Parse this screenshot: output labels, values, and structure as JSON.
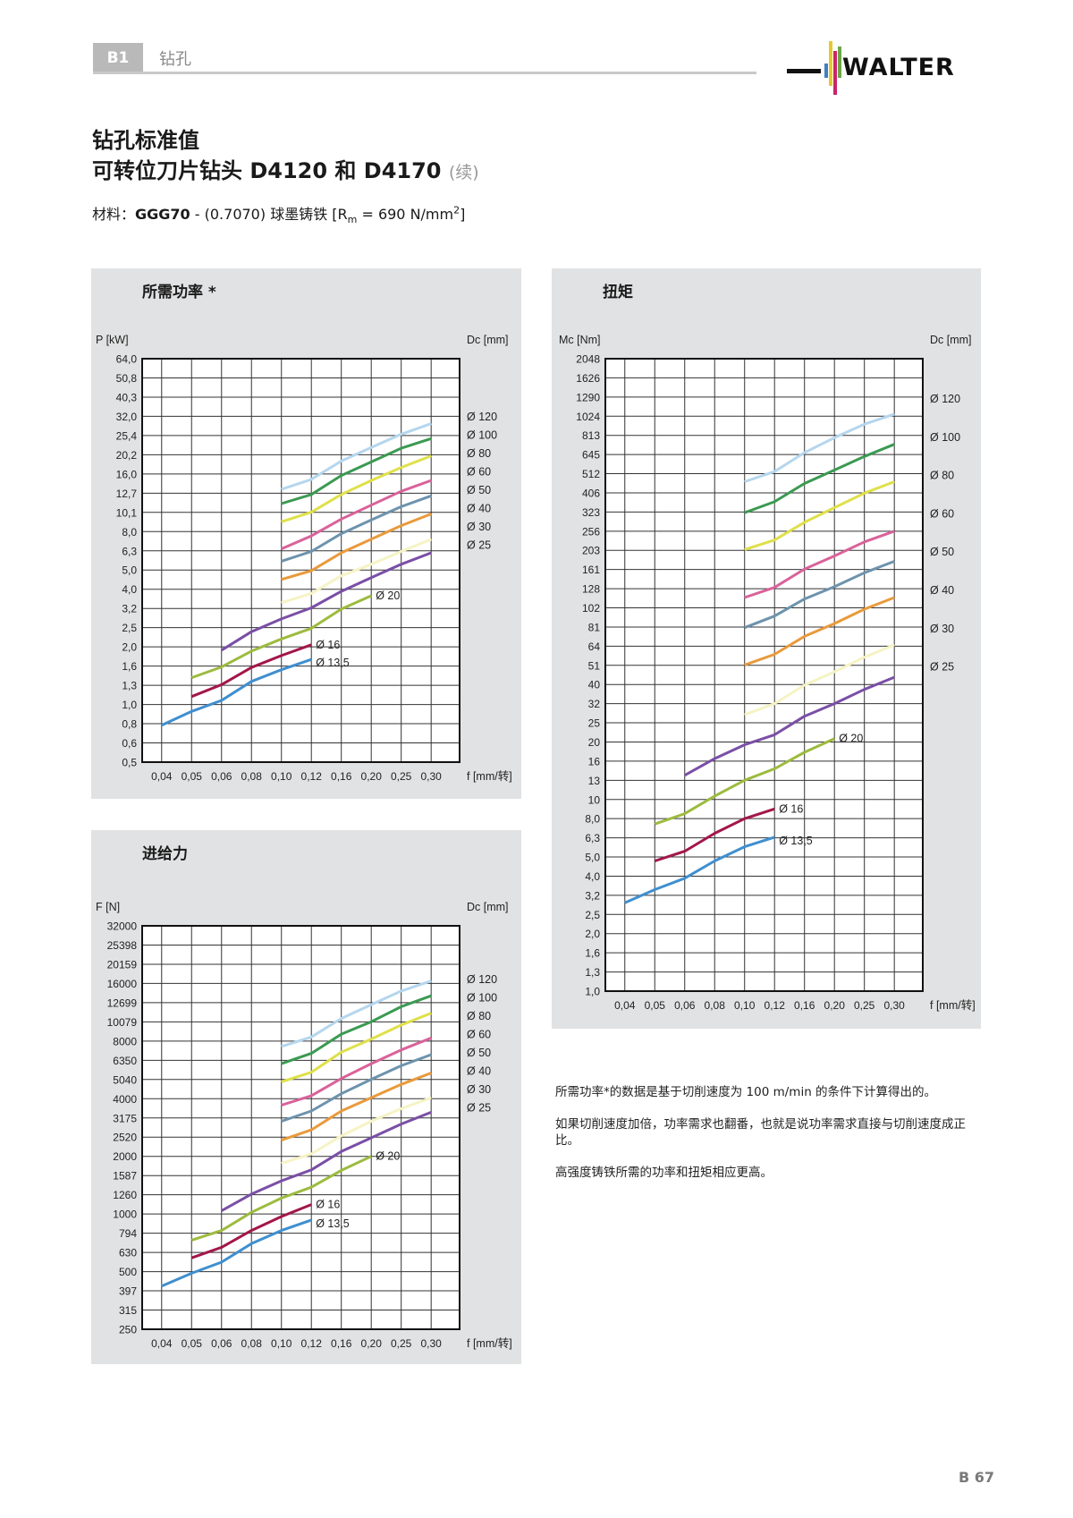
{
  "header": {
    "section_tab": "B1",
    "section_title": "钻孔",
    "brand": "WALTER"
  },
  "title": {
    "line1": "钻孔标准值",
    "line2": "可转位刀片钻头 D4120 和 D4170",
    "line2_suffix": "(续)"
  },
  "material": {
    "label": "材料：",
    "grade": "GGG70",
    "rest": " - (0.7070) 球墨铸铁 [R",
    "sub": "m",
    "rest2": " = 690 N/mm",
    "sup": "2",
    "close": "]"
  },
  "notes": [
    "所需功率*的数据是基于切削速度为 100 m/min 的条件下计算得出的。",
    "如果切削速度加倍，功率需求也翻番，也就是说功率需求直接与切削速度成正比。",
    "高强度铸铁所需的功率和扭矩相应更高。"
  ],
  "page_number": "B 67",
  "series_colors": {
    "Ø 13,5": "#3f8fcf",
    "Ø 16": "#a3164a",
    "Ø 20": "#9dbb3f",
    "Ø 25": "#7a4fa6",
    "Ø 30": "#f6f3c4",
    "Ø 40": "#e99a3c",
    "Ø 50": "#6d93ad",
    "Ø 60": "#d9629a",
    "Ø 80": "#dfe04a",
    "Ø 100": "#3b9a52",
    "Ø 120": "#b5d6ee"
  },
  "chart_data": [
    {
      "type": "line",
      "title": "所需功率 *",
      "ylabel": "P [kW]",
      "xlabel": "f [mm/转]",
      "right_label": "Dc [mm]",
      "y_scale": "log",
      "yticks": [
        "0,5",
        "0,6",
        "0,8",
        "1,0",
        "1,3",
        "1,6",
        "2,0",
        "2,5",
        "3,2",
        "4,0",
        "5,0",
        "6,3",
        "8,0",
        "10,1",
        "12,7",
        "16,0",
        "20,2",
        "25,4",
        "32,0",
        "40,3",
        "50,8",
        "64,0"
      ],
      "ylim": [
        0.5,
        64.0
      ],
      "categories": [
        "0,04",
        "0,05",
        "0,06",
        "0,08",
        "0,10",
        "0,12",
        "0,16",
        "0,20",
        "0,25",
        "0,30"
      ],
      "grid": true,
      "legend_right": [
        "Ø 120",
        "Ø 100",
        "Ø 80",
        "Ø 60",
        "Ø 50",
        "Ø 40",
        "Ø 30",
        "Ø 25"
      ],
      "inline_labels": [
        "Ø 20",
        "Ø 16",
        "Ø 13,5"
      ],
      "series": [
        {
          "name": "Ø 13,5",
          "x": [
            0.04,
            0.05,
            0.06,
            0.08,
            0.1,
            0.12
          ],
          "values": [
            0.78,
            0.92,
            1.05,
            1.32,
            1.52,
            1.72
          ]
        },
        {
          "name": "Ø 16",
          "x": [
            0.05,
            0.06,
            0.08,
            0.1,
            0.12
          ],
          "values": [
            1.1,
            1.27,
            1.56,
            1.8,
            2.05
          ]
        },
        {
          "name": "Ø 20",
          "x": [
            0.05,
            0.06,
            0.08,
            0.1,
            0.12,
            0.16,
            0.2
          ],
          "values": [
            1.38,
            1.57,
            1.9,
            2.2,
            2.5,
            3.15,
            3.7
          ]
        },
        {
          "name": "Ø 25",
          "x": [
            0.06,
            0.08,
            0.1,
            0.12,
            0.16,
            0.2,
            0.25,
            0.3
          ],
          "values": [
            1.92,
            2.4,
            2.8,
            3.2,
            3.9,
            4.6,
            5.4,
            6.2
          ]
        },
        {
          "name": "Ø 30",
          "x": [
            0.1,
            0.12,
            0.16,
            0.2,
            0.25,
            0.3
          ],
          "values": [
            3.4,
            3.8,
            4.7,
            5.4,
            6.3,
            7.3
          ]
        },
        {
          "name": "Ø 40",
          "x": [
            0.1,
            0.12,
            0.16,
            0.2,
            0.25,
            0.3
          ],
          "values": [
            4.5,
            5.0,
            6.2,
            7.3,
            8.6,
            9.9
          ]
        },
        {
          "name": "Ø 50",
          "x": [
            0.1,
            0.12,
            0.16,
            0.2,
            0.25,
            0.3
          ],
          "values": [
            5.6,
            6.3,
            7.8,
            9.2,
            10.8,
            12.3
          ]
        },
        {
          "name": "Ø 60",
          "x": [
            0.1,
            0.12,
            0.16,
            0.2,
            0.25,
            0.3
          ],
          "values": [
            6.5,
            7.6,
            9.3,
            11.0,
            13.0,
            14.8
          ]
        },
        {
          "name": "Ø 80",
          "x": [
            0.1,
            0.12,
            0.16,
            0.2,
            0.25,
            0.3
          ],
          "values": [
            9.0,
            10.1,
            12.5,
            14.8,
            17.3,
            19.9
          ]
        },
        {
          "name": "Ø 100",
          "x": [
            0.1,
            0.12,
            0.16,
            0.2,
            0.25,
            0.3
          ],
          "values": [
            11.2,
            12.5,
            15.7,
            18.5,
            21.8,
            24.5
          ]
        },
        {
          "name": "Ø 120",
          "x": [
            0.1,
            0.12,
            0.16,
            0.2,
            0.25,
            0.3
          ],
          "values": [
            13.3,
            15.0,
            18.7,
            22.0,
            25.8,
            29.3
          ]
        }
      ]
    },
    {
      "type": "line",
      "title": "扭矩",
      "ylabel": "Mc [Nm]",
      "xlabel": "f [mm/转]",
      "right_label": "Dc [mm]",
      "y_scale": "log",
      "yticks": [
        "1,0",
        "1,3",
        "1,6",
        "2,0",
        "2,5",
        "3,2",
        "4,0",
        "5,0",
        "6,3",
        "8,0",
        "10",
        "13",
        "16",
        "20",
        "25",
        "32",
        "40",
        "51",
        "64",
        "81",
        "102",
        "128",
        "161",
        "203",
        "256",
        "323",
        "406",
        "512",
        "645",
        "813",
        "1024",
        "1290",
        "1626",
        "2048"
      ],
      "ylim": [
        1.0,
        2048
      ],
      "categories": [
        "0,04",
        "0,05",
        "0,06",
        "0,08",
        "0,10",
        "0,12",
        "0,16",
        "0,20",
        "0,25",
        "0,30"
      ],
      "grid": true,
      "legend_right": [
        "Ø 120",
        "Ø 100",
        "Ø 80",
        "Ø 60",
        "Ø 50",
        "Ø 40",
        "Ø 30",
        "Ø 25"
      ],
      "inline_labels": [
        "Ø 20",
        "Ø 16",
        "Ø 13,5"
      ],
      "series": [
        {
          "name": "Ø 13,5",
          "x": [
            0.04,
            0.05,
            0.06,
            0.08,
            0.1,
            0.12
          ],
          "values": [
            2.9,
            3.4,
            3.9,
            4.8,
            5.7,
            6.4
          ]
        },
        {
          "name": "Ø 16",
          "x": [
            0.05,
            0.06,
            0.08,
            0.1,
            0.12
          ],
          "values": [
            4.8,
            5.4,
            6.7,
            8.0,
            9.0
          ]
        },
        {
          "name": "Ø 20",
          "x": [
            0.05,
            0.06,
            0.08,
            0.1,
            0.12,
            0.16,
            0.2
          ],
          "values": [
            7.5,
            8.5,
            10.5,
            12.7,
            14.6,
            17.8,
            21.0
          ]
        },
        {
          "name": "Ø 25",
          "x": [
            0.06,
            0.08,
            0.1,
            0.12,
            0.16,
            0.2,
            0.25,
            0.3
          ],
          "values": [
            13.5,
            16.5,
            19.5,
            22.0,
            27.5,
            32.0,
            38.0,
            44.0
          ]
        },
        {
          "name": "Ø 30",
          "x": [
            0.1,
            0.12,
            0.16,
            0.2,
            0.25,
            0.3
          ],
          "values": [
            28,
            32,
            40,
            47,
            56,
            65
          ]
        },
        {
          "name": "Ø 40",
          "x": [
            0.1,
            0.12,
            0.16,
            0.2,
            0.25,
            0.3
          ],
          "values": [
            51,
            58,
            72,
            84,
            100,
            115
          ]
        },
        {
          "name": "Ø 50",
          "x": [
            0.1,
            0.12,
            0.16,
            0.2,
            0.25,
            0.3
          ],
          "values": [
            80,
            92,
            113,
            131,
            155,
            178
          ]
        },
        {
          "name": "Ø 60",
          "x": [
            0.1,
            0.12,
            0.16,
            0.2,
            0.25,
            0.3
          ],
          "values": [
            115,
            130,
            162,
            190,
            225,
            256
          ]
        },
        {
          "name": "Ø 80",
          "x": [
            0.1,
            0.12,
            0.16,
            0.2,
            0.25,
            0.3
          ],
          "values": [
            205,
            230,
            285,
            340,
            405,
            465
          ]
        },
        {
          "name": "Ø 100",
          "x": [
            0.1,
            0.12,
            0.16,
            0.2,
            0.25,
            0.3
          ],
          "values": [
            320,
            365,
            455,
            535,
            630,
            730
          ]
        },
        {
          "name": "Ø 120",
          "x": [
            0.1,
            0.12,
            0.16,
            0.2,
            0.25,
            0.3
          ],
          "values": [
            465,
            525,
            660,
            790,
            930,
            1050
          ]
        }
      ]
    },
    {
      "type": "line",
      "title": "进给力",
      "ylabel": "F [N]",
      "xlabel": "f [mm/转]",
      "right_label": "Dc [mm]",
      "y_scale": "log",
      "yticks": [
        "250",
        "315",
        "397",
        "500",
        "630",
        "794",
        "1000",
        "1260",
        "1587",
        "2000",
        "2520",
        "3175",
        "4000",
        "5040",
        "6350",
        "8000",
        "10079",
        "12699",
        "16000",
        "20159",
        "25398",
        "32000"
      ],
      "ylim": [
        250,
        32000
      ],
      "categories": [
        "0,04",
        "0,05",
        "0,06",
        "0,08",
        "0,10",
        "0,12",
        "0,16",
        "0,20",
        "0,25",
        "0,30"
      ],
      "grid": true,
      "legend_right": [
        "Ø 120",
        "Ø 100",
        "Ø 80",
        "Ø 60",
        "Ø 50",
        "Ø 40",
        "Ø 30",
        "Ø 25"
      ],
      "inline_labels": [
        "Ø 20",
        "Ø 16",
        "Ø 13,5"
      ],
      "series": [
        {
          "name": "Ø 13,5",
          "x": [
            0.04,
            0.05,
            0.06,
            0.08,
            0.1,
            0.12
          ],
          "values": [
            420,
            490,
            560,
            700,
            820,
            930
          ]
        },
        {
          "name": "Ø 16",
          "x": [
            0.05,
            0.06,
            0.08,
            0.1,
            0.12
          ],
          "values": [
            590,
            670,
            820,
            970,
            1120
          ]
        },
        {
          "name": "Ø 20",
          "x": [
            0.05,
            0.06,
            0.08,
            0.1,
            0.12,
            0.16,
            0.2
          ],
          "values": [
            730,
            820,
            1020,
            1210,
            1380,
            1690,
            2000
          ]
        },
        {
          "name": "Ø 25",
          "x": [
            0.06,
            0.08,
            0.1,
            0.12,
            0.16,
            0.2,
            0.25,
            0.3
          ],
          "values": [
            1040,
            1270,
            1490,
            1700,
            2120,
            2500,
            2950,
            3400
          ]
        },
        {
          "name": "Ø 30",
          "x": [
            0.1,
            0.12,
            0.16,
            0.2,
            0.25,
            0.3
          ],
          "values": [
            1840,
            2060,
            2560,
            3050,
            3550,
            4050
          ]
        },
        {
          "name": "Ø 40",
          "x": [
            0.1,
            0.12,
            0.16,
            0.2,
            0.25,
            0.3
          ],
          "values": [
            2430,
            2750,
            3450,
            4050,
            4750,
            5450
          ]
        },
        {
          "name": "Ø 50",
          "x": [
            0.1,
            0.12,
            0.16,
            0.2,
            0.25,
            0.3
          ],
          "values": [
            3050,
            3450,
            4250,
            5050,
            5950,
            6800
          ]
        },
        {
          "name": "Ø 60",
          "x": [
            0.1,
            0.12,
            0.16,
            0.2,
            0.25,
            0.3
          ],
          "values": [
            3700,
            4150,
            5100,
            6100,
            7200,
            8300
          ]
        },
        {
          "name": "Ø 80",
          "x": [
            0.1,
            0.12,
            0.16,
            0.2,
            0.25,
            0.3
          ],
          "values": [
            4900,
            5500,
            7000,
            8200,
            9700,
            11200
          ]
        },
        {
          "name": "Ø 100",
          "x": [
            0.1,
            0.12,
            0.16,
            0.2,
            0.25,
            0.3
          ],
          "values": [
            6100,
            6900,
            8700,
            10100,
            12100,
            13800
          ]
        },
        {
          "name": "Ø 120",
          "x": [
            0.1,
            0.12,
            0.16,
            0.2,
            0.25,
            0.3
          ],
          "values": [
            7500,
            8400,
            10500,
            12400,
            14600,
            16500
          ]
        }
      ]
    }
  ]
}
